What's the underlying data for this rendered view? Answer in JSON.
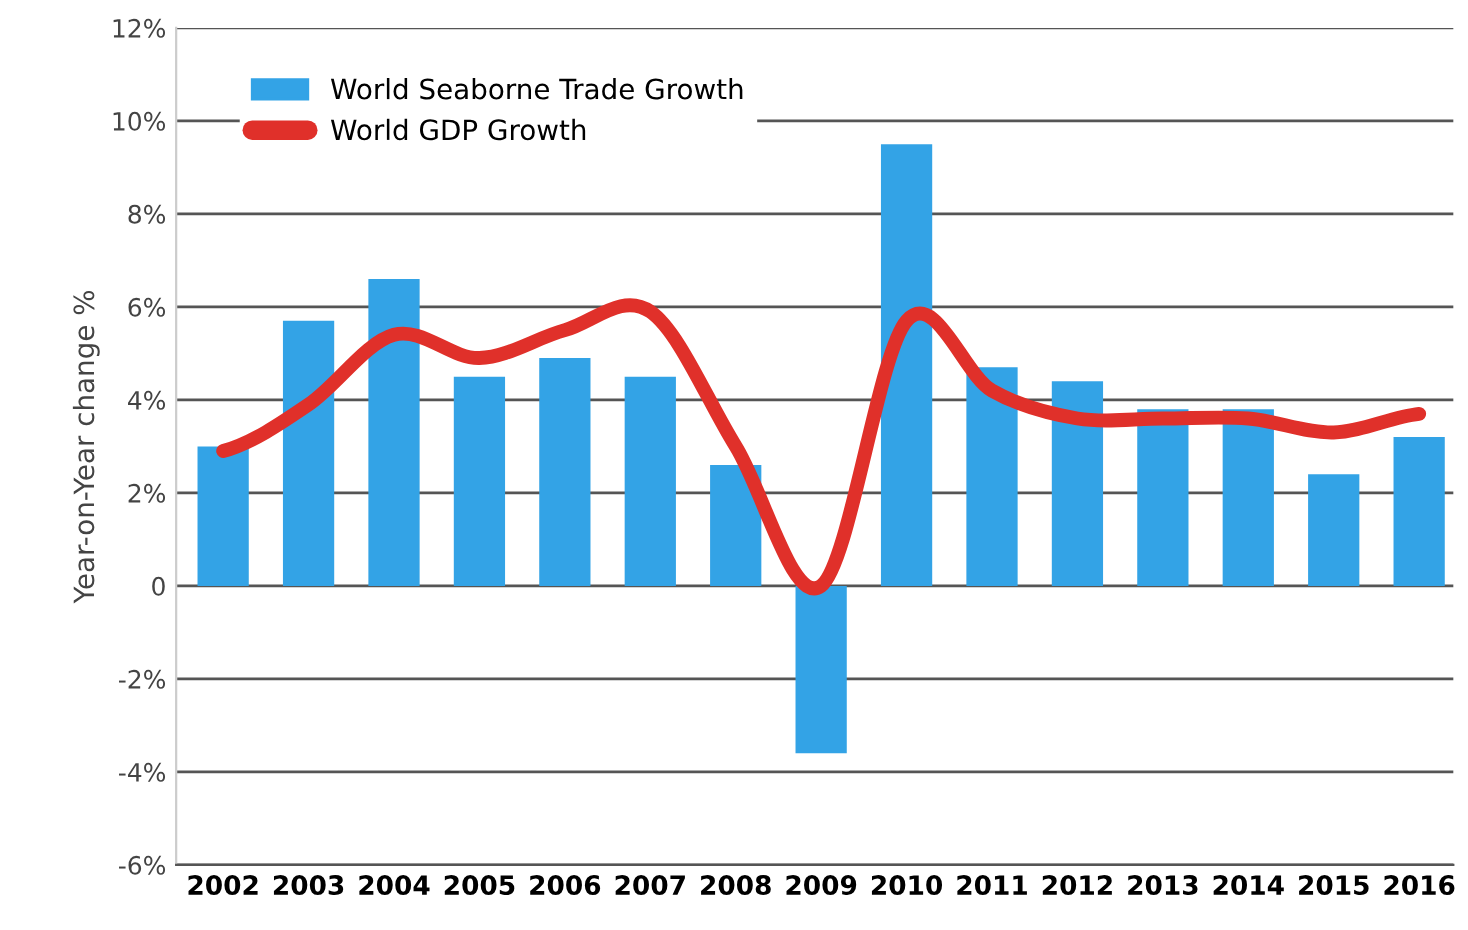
{
  "chart_data": {
    "type": "bar",
    "ylabel": "Year-on-Year change %",
    "categories": [
      "2002",
      "2003",
      "2004",
      "2005",
      "2006",
      "2007",
      "2008",
      "2009",
      "2010",
      "2011",
      "2012",
      "2013",
      "2014",
      "2015",
      "2016"
    ],
    "series": [
      {
        "name": "World Seaborne Trade Growth",
        "color": "#33a3e6",
        "values": [
          3.0,
          5.7,
          6.6,
          4.5,
          4.9,
          4.5,
          2.6,
          -3.6,
          9.5,
          4.7,
          4.4,
          3.8,
          3.8,
          2.4,
          3.2
        ]
      },
      {
        "name": "World GDP Growth",
        "type": "line",
        "color": "#e0302a",
        "values": [
          2.9,
          3.9,
          5.4,
          4.9,
          5.5,
          5.9,
          3.0,
          0.0,
          5.7,
          4.2,
          3.6,
          3.6,
          3.6,
          3.3,
          3.7
        ]
      }
    ],
    "ylim": [
      -6,
      12
    ],
    "yticks": [
      {
        "value": -6,
        "label": "-6%"
      },
      {
        "value": -4,
        "label": "-4%"
      },
      {
        "value": -2,
        "label": "-2%"
      },
      0,
      {
        "value": 2,
        "label": "2%"
      },
      {
        "value": 4,
        "label": "4%"
      },
      {
        "value": 6,
        "label": "6%"
      },
      {
        "value": 8,
        "label": "8%"
      },
      {
        "value": 10,
        "label": "10%"
      },
      {
        "value": 12,
        "label": "12%"
      }
    ],
    "grid": "y",
    "legend": "top left"
  }
}
